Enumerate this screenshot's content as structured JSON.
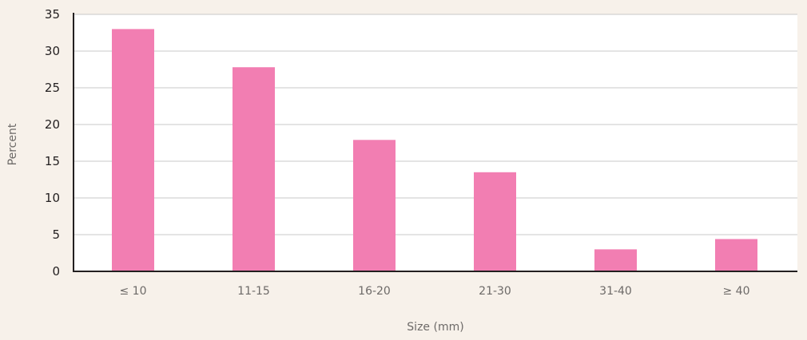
{
  "chart_data": {
    "type": "bar",
    "categories": [
      "≤ 10",
      "11-15",
      "16-20",
      "21-30",
      "31-40",
      "≥ 40"
    ],
    "values": [
      33,
      27.8,
      17.9,
      13.5,
      3,
      4.4
    ],
    "xlabel": "Size (mm)",
    "ylabel": "Percent",
    "ylim": [
      0,
      35
    ],
    "yticks": [
      0,
      5,
      10,
      15,
      20,
      25,
      30,
      35
    ],
    "grid": true,
    "colors": {
      "bar": "#f27eb2",
      "background": "#f7f1ea",
      "plot_background": "#ffffff",
      "grid": "#c8c8c8",
      "axis": "#231f20"
    }
  }
}
